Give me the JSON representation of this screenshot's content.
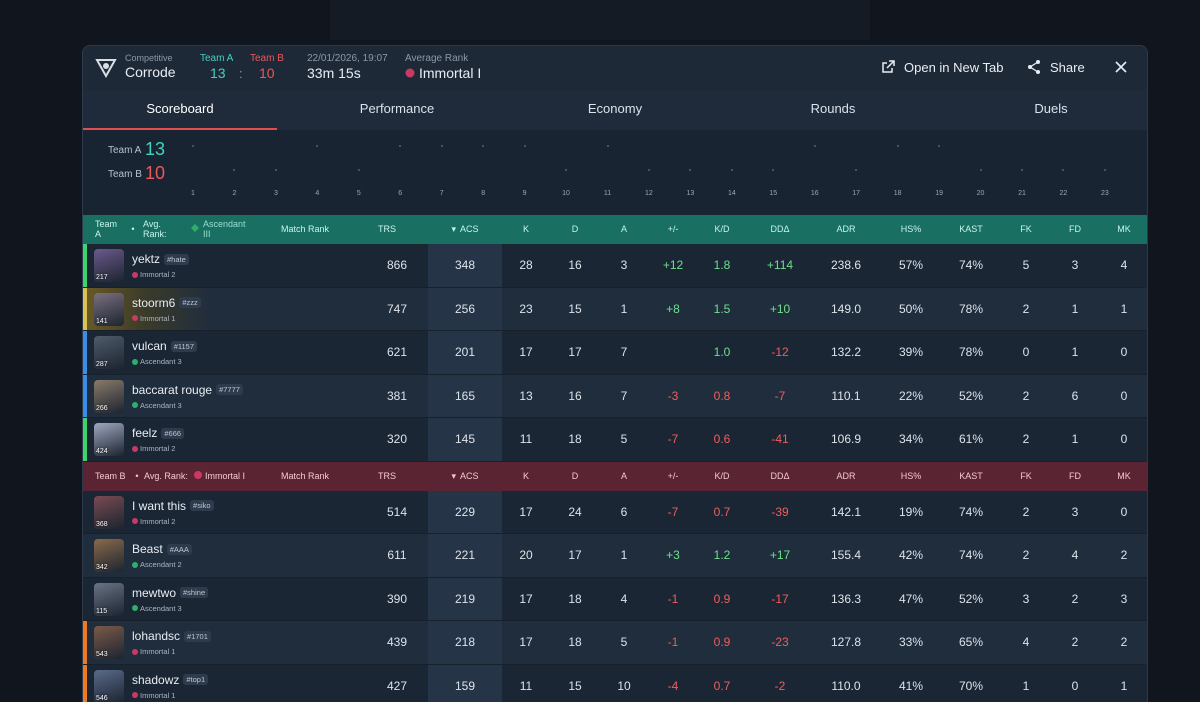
{
  "header": {
    "mode_label": "Competitive",
    "map": "Corrode",
    "team_a_label": "Team A",
    "team_b_label": "Team B",
    "team_a_score": "13",
    "team_b_score": "10",
    "colon": ":",
    "datetime": "22/01/2026, 19:07",
    "duration": "33m 15s",
    "avg_rank_label": "Average Rank",
    "avg_rank": "Immortal I",
    "open_new_tab": "Open in New Tab",
    "share": "Share"
  },
  "tabs": [
    "Scoreboard",
    "Performance",
    "Economy",
    "Rounds",
    "Duels"
  ],
  "timeline": {
    "team_a_label": "Team A",
    "team_a_score": "13",
    "team_b_label": "Team B",
    "team_b_score": "10",
    "rounds": [
      {
        "n": "1",
        "w": "B",
        "icon": "elim"
      },
      {
        "n": "2",
        "w": "A",
        "icon": "elim"
      },
      {
        "n": "3",
        "w": "A",
        "icon": "elim"
      },
      {
        "n": "4",
        "w": "B",
        "icon": "elim"
      },
      {
        "n": "5",
        "w": "A",
        "icon": "elim"
      },
      {
        "n": "6",
        "w": "B",
        "icon": "elim"
      },
      {
        "n": "7",
        "w": "B",
        "icon": "elim"
      },
      {
        "n": "8",
        "w": "B",
        "icon": "elim"
      },
      {
        "n": "9",
        "w": "B",
        "icon": "elim"
      },
      {
        "n": "10",
        "w": "A",
        "icon": "elim"
      },
      {
        "n": "11",
        "w": "B",
        "icon": "elim"
      },
      {
        "n": "12",
        "w": "A",
        "icon": "elim"
      },
      {
        "n": "13",
        "w": "A",
        "icon": "defuse"
      },
      {
        "n": "14",
        "w": "A",
        "icon": "defuse"
      },
      {
        "n": "15",
        "w": "A",
        "icon": "elim"
      },
      {
        "n": "16",
        "w": "B",
        "icon": "elim"
      },
      {
        "n": "17",
        "w": "A",
        "icon": "elim"
      },
      {
        "n": "18",
        "w": "B",
        "icon": "elim"
      },
      {
        "n": "19",
        "w": "B",
        "icon": "elim"
      },
      {
        "n": "20",
        "w": "A",
        "icon": "elim"
      },
      {
        "n": "21",
        "w": "A",
        "icon": "elim"
      },
      {
        "n": "22",
        "w": "A",
        "icon": "defuse"
      },
      {
        "n": "23",
        "w": "A",
        "icon": "elim"
      }
    ]
  },
  "columns": {
    "match_rank": "Match Rank",
    "trs": "TRS",
    "acs": "ACS",
    "k": "K",
    "d": "D",
    "a": "A",
    "pm": "+/-",
    "kd": "K/D",
    "dda": "DDΔ",
    "adr": "ADR",
    "hs": "HS%",
    "kast": "KAST",
    "fk": "FK",
    "fd": "FD",
    "mk": "MK",
    "sort_icon": "▾"
  },
  "team_a": {
    "label": "Team A",
    "avg_label": "Avg. Rank:",
    "avg_rank": "Ascendant III",
    "dot": "•",
    "players": [
      {
        "name": "yektz",
        "tag": "#hate",
        "level": "217",
        "rank": "Immortal 2",
        "rank_type": "imm",
        "trs_tier": "blue",
        "bar": "#3fd36f",
        "avatar": "#6b5a8c",
        "trs": "866",
        "acs": "348",
        "k": "28",
        "d": "16",
        "a": "3",
        "pm": "+12",
        "kd": "1.8",
        "dda": "+114",
        "adr": "238.6",
        "hs": "57%",
        "kast": "74%",
        "fk": "5",
        "fd": "3",
        "mk": "4"
      },
      {
        "name": "stoorm6",
        "tag": "#zzz",
        "level": "141",
        "rank": "Immortal 1",
        "rank_type": "imm",
        "trs_tier": "green",
        "bar": "#d8c255",
        "avatar": "#7a7080",
        "trs": "747",
        "acs": "256",
        "k": "23",
        "d": "15",
        "a": "1",
        "pm": "+8",
        "kd": "1.5",
        "dda": "+10",
        "adr": "149.0",
        "hs": "50%",
        "kast": "78%",
        "fk": "2",
        "fd": "1",
        "mk": "1"
      },
      {
        "name": "vulcan",
        "tag": "#1157",
        "level": "287",
        "rank": "Ascendant 3",
        "rank_type": "asc",
        "trs_tier": "gold",
        "bar": "#3a8ee8",
        "avatar": "#4f5b6b",
        "trs": "621",
        "acs": "201",
        "k": "17",
        "d": "17",
        "a": "7",
        "pm": "",
        "kd": "1.0",
        "dda": "-12",
        "adr": "132.2",
        "hs": "39%",
        "kast": "78%",
        "fk": "0",
        "fd": "1",
        "mk": "0"
      },
      {
        "name": "baccarat rouge",
        "tag": "#7777",
        "level": "266",
        "rank": "Ascendant 3",
        "rank_type": "asc",
        "trs_tier": "silver",
        "bar": "#3a8ee8",
        "avatar": "#8a7a6a",
        "trs": "381",
        "acs": "165",
        "k": "13",
        "d": "16",
        "a": "7",
        "pm": "-3",
        "kd": "0.8",
        "dda": "-7",
        "adr": "110.1",
        "hs": "22%",
        "kast": "52%",
        "fk": "2",
        "fd": "6",
        "mk": "0"
      },
      {
        "name": "feelz",
        "tag": "#666",
        "level": "424",
        "rank": "Immortal 2",
        "rank_type": "imm",
        "trs_tier": "silver",
        "bar": "#3fd36f",
        "avatar": "#a0a8c0",
        "trs": "320",
        "acs": "145",
        "k": "11",
        "d": "18",
        "a": "5",
        "pm": "-7",
        "kd": "0.6",
        "dda": "-41",
        "adr": "106.9",
        "hs": "34%",
        "kast": "61%",
        "fk": "2",
        "fd": "1",
        "mk": "0"
      }
    ]
  },
  "team_b": {
    "label": "Team B",
    "avg_label": "Avg. Rank:",
    "avg_rank": "Immortal I",
    "dot": "•",
    "players": [
      {
        "name": "I want this",
        "tag": "#siko",
        "level": "368",
        "rank": "Immortal 2",
        "rank_type": "imm",
        "trs_tier": "gold",
        "bar": "",
        "avatar": "#7a4b52",
        "trs": "514",
        "acs": "229",
        "k": "17",
        "d": "24",
        "a": "6",
        "pm": "-7",
        "kd": "0.7",
        "dda": "-39",
        "adr": "142.1",
        "hs": "19%",
        "kast": "74%",
        "fk": "2",
        "fd": "3",
        "mk": "0"
      },
      {
        "name": "Beast",
        "tag": "#AAA",
        "level": "342",
        "rank": "Ascendant 2",
        "rank_type": "asc",
        "trs_tier": "gold",
        "bar": "",
        "avatar": "#8a6a4a",
        "trs": "611",
        "acs": "221",
        "k": "20",
        "d": "17",
        "a": "1",
        "pm": "+3",
        "kd": "1.2",
        "dda": "+17",
        "adr": "155.4",
        "hs": "42%",
        "kast": "74%",
        "fk": "2",
        "fd": "4",
        "mk": "2"
      },
      {
        "name": "mewtwo",
        "tag": "#shine",
        "level": "115",
        "rank": "Ascendant 3",
        "rank_type": "asc",
        "trs_tier": "silver",
        "bar": "",
        "avatar": "#6a7486",
        "trs": "390",
        "acs": "219",
        "k": "17",
        "d": "18",
        "a": "4",
        "pm": "-1",
        "kd": "0.9",
        "dda": "-17",
        "adr": "136.3",
        "hs": "47%",
        "kast": "52%",
        "fk": "3",
        "fd": "2",
        "mk": "3"
      },
      {
        "name": "lohandsc",
        "tag": "#1701",
        "level": "543",
        "rank": "Immortal 1",
        "rank_type": "imm",
        "trs_tier": "silver",
        "bar": "#f07a22",
        "avatar": "#7c5a4a",
        "trs": "439",
        "acs": "218",
        "k": "17",
        "d": "18",
        "a": "5",
        "pm": "-1",
        "kd": "0.9",
        "dda": "-23",
        "adr": "127.8",
        "hs": "33%",
        "kast": "65%",
        "fk": "4",
        "fd": "2",
        "mk": "2"
      },
      {
        "name": "shadowz",
        "tag": "#top1",
        "level": "546",
        "rank": "Immortal 1",
        "rank_type": "imm",
        "trs_tier": "silver",
        "bar": "#f07a22",
        "avatar": "#5a6a8a",
        "trs": "427",
        "acs": "159",
        "k": "11",
        "d": "15",
        "a": "10",
        "pm": "-4",
        "kd": "0.7",
        "dda": "-2",
        "adr": "110.0",
        "hs": "41%",
        "kast": "70%",
        "fk": "1",
        "fd": "0",
        "mk": "1"
      }
    ]
  },
  "colors": {
    "team_a": "#3fd3c2",
    "team_b": "#ef5656",
    "immortal": "#c83a64",
    "ascendant": "#2fae6a",
    "positive": "#6fe08a",
    "negative": "#ef5d5d"
  }
}
